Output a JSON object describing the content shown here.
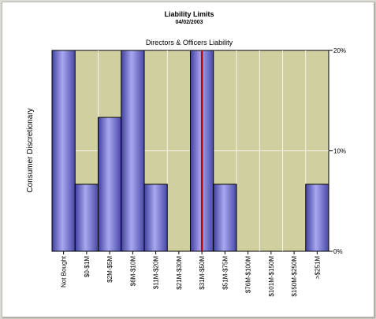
{
  "chart_data": {
    "type": "bar",
    "title": "Liability Limits",
    "subtitle": "04/02/2003",
    "chart_title": "Directors & Officers Liability",
    "ylabel": "Consumer Discretionary",
    "xlabel": "",
    "categories": [
      "Not Bought",
      "$0-$1M",
      "$2M-$5M",
      "$6M-$10M",
      "$11M-$20M",
      "$21M-$30M",
      "$31M-$50M",
      "$51M-$75M",
      "$76M-$100M",
      "$101M-$150M",
      "$150M-$250M",
      ">$251M"
    ],
    "values": [
      20,
      6.67,
      13.33,
      20,
      6.67,
      0,
      20,
      6.67,
      0,
      0,
      0,
      6.67
    ],
    "ylim": [
      0,
      20
    ],
    "yticks": [
      "0%",
      "10%",
      "20%"
    ],
    "ytick_values": [
      0,
      10,
      20
    ],
    "marker_category": "$31M-$50M",
    "grid": true,
    "legend": "none",
    "colors": {
      "plot_bg": "#cfcf9f",
      "bar": "#7878d0",
      "marker": "#c00000"
    }
  }
}
